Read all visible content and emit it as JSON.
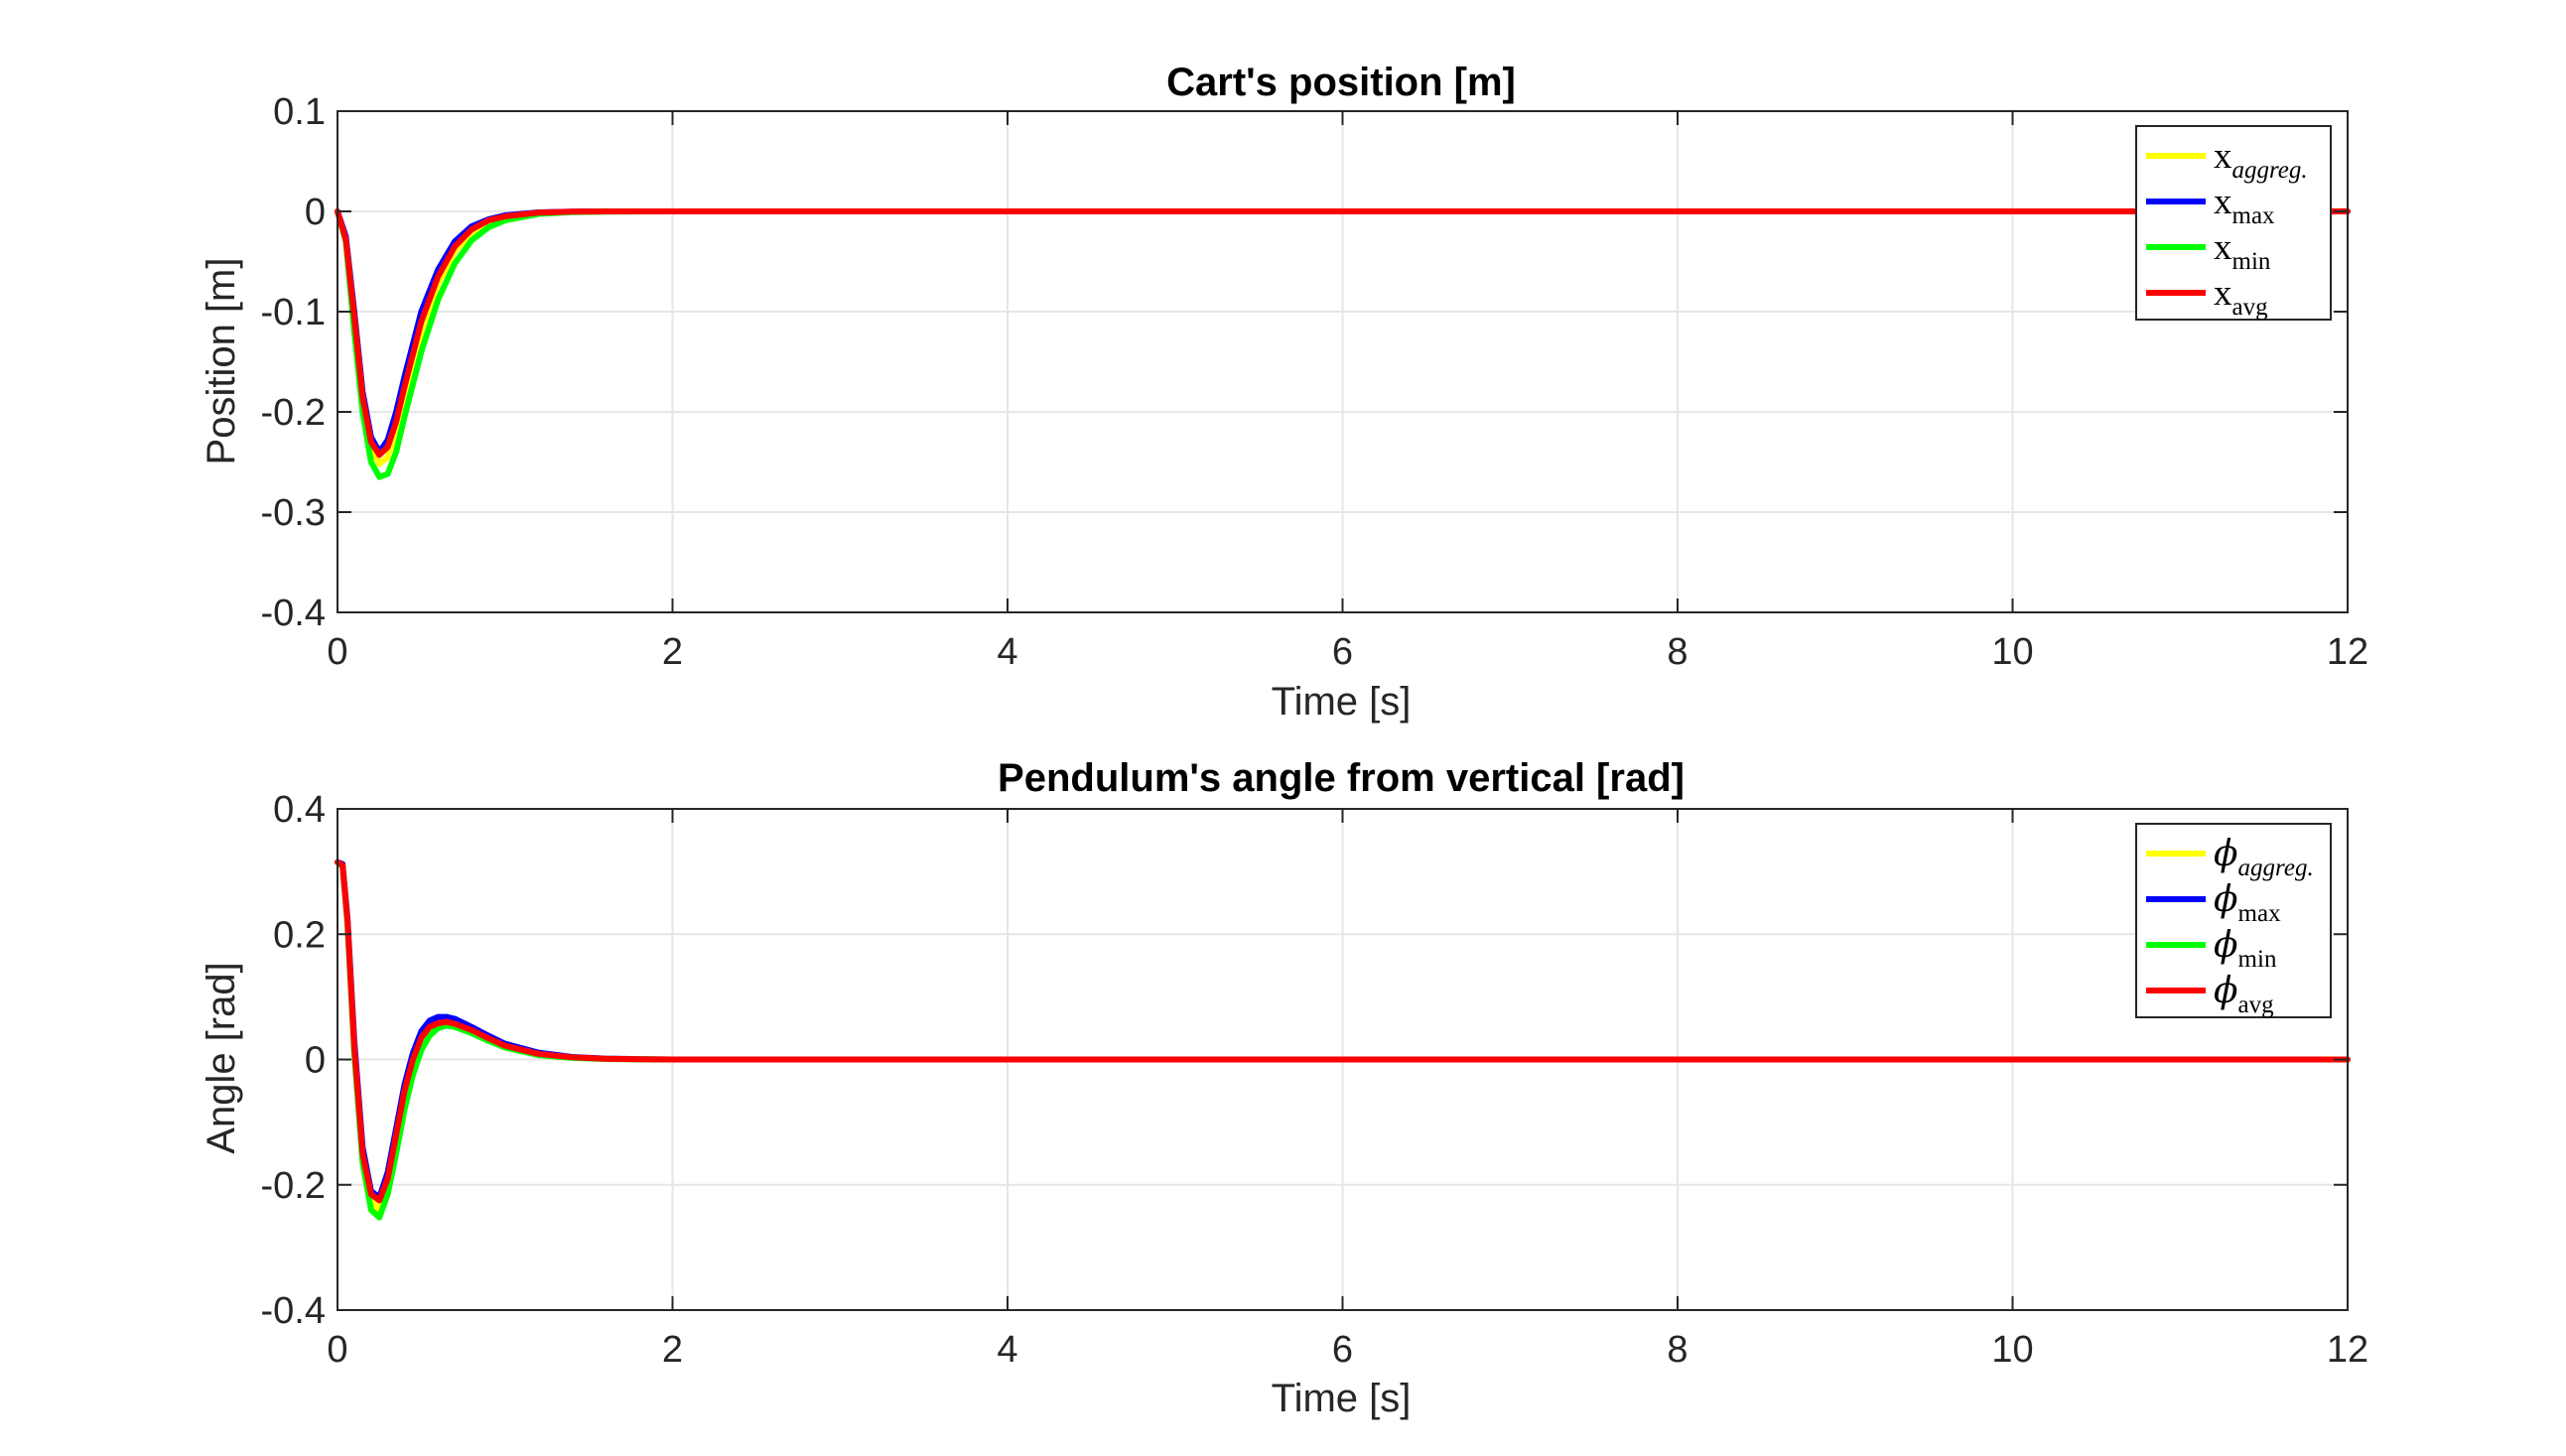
{
  "chart_data": [
    {
      "type": "line",
      "title": "Cart's position [m]",
      "xlabel": "Time [s]",
      "ylabel": "Position [m]",
      "xlim": [
        0,
        12
      ],
      "ylim": [
        -0.4,
        0.1
      ],
      "xticks": [
        0,
        2,
        4,
        6,
        8,
        10,
        12
      ],
      "xtick_labels": [
        "0",
        "2",
        "4",
        "6",
        "8",
        "10",
        "12"
      ],
      "yticks": [
        0.1,
        0,
        -0.1,
        -0.2,
        -0.3,
        -0.4
      ],
      "ytick_labels": [
        "0.1",
        "0",
        "-0.1",
        "-0.2",
        "-0.3",
        "-0.4"
      ],
      "grid": true,
      "legend_position": "top-right",
      "legend_symbol": "x",
      "series": [
        {
          "name": "aggreg.",
          "color": "#ffff00",
          "x": [
            0,
            0.05,
            0.1,
            0.15,
            0.2,
            0.25,
            0.3,
            0.35,
            0.4,
            0.5,
            0.6,
            0.7,
            0.8,
            0.9,
            1.0,
            1.2,
            1.4,
            1.6,
            2.0,
            12.0
          ],
          "y": [
            0,
            -0.03,
            -0.11,
            -0.19,
            -0.235,
            -0.252,
            -0.245,
            -0.22,
            -0.185,
            -0.12,
            -0.072,
            -0.04,
            -0.021,
            -0.011,
            -0.006,
            -0.0015,
            -0.0004,
            0,
            0,
            0
          ]
        },
        {
          "name": "max",
          "color": "#0000ff",
          "x": [
            0,
            0.05,
            0.1,
            0.15,
            0.2,
            0.25,
            0.3,
            0.35,
            0.4,
            0.5,
            0.6,
            0.7,
            0.8,
            0.9,
            1.0,
            1.2,
            1.4,
            1.6,
            2.0,
            12.0
          ],
          "y": [
            0,
            -0.025,
            -0.1,
            -0.18,
            -0.225,
            -0.24,
            -0.228,
            -0.2,
            -0.165,
            -0.1,
            -0.058,
            -0.03,
            -0.015,
            -0.008,
            -0.004,
            -0.001,
            -0.0003,
            0,
            0,
            0
          ]
        },
        {
          "name": "min",
          "color": "#00ff00",
          "x": [
            0,
            0.05,
            0.1,
            0.15,
            0.2,
            0.25,
            0.3,
            0.35,
            0.4,
            0.5,
            0.6,
            0.7,
            0.8,
            0.9,
            1.0,
            1.2,
            1.4,
            1.6,
            2.0,
            12.0
          ],
          "y": [
            0,
            -0.03,
            -0.12,
            -0.2,
            -0.25,
            -0.265,
            -0.262,
            -0.24,
            -0.205,
            -0.14,
            -0.088,
            -0.052,
            -0.029,
            -0.016,
            -0.009,
            -0.0025,
            -0.0007,
            -0.0002,
            0,
            0
          ]
        },
        {
          "name": "avg",
          "color": "#ff0000",
          "x": [
            0,
            0.05,
            0.1,
            0.15,
            0.2,
            0.25,
            0.3,
            0.35,
            0.4,
            0.5,
            0.6,
            0.7,
            0.8,
            0.9,
            1.0,
            1.2,
            1.4,
            1.6,
            2.0,
            12.0
          ],
          "y": [
            0,
            -0.028,
            -0.105,
            -0.185,
            -0.23,
            -0.243,
            -0.235,
            -0.21,
            -0.175,
            -0.11,
            -0.065,
            -0.035,
            -0.018,
            -0.009,
            -0.005,
            -0.0012,
            -0.0003,
            0,
            0,
            0
          ]
        }
      ]
    },
    {
      "type": "line",
      "title": "Pendulum's angle from vertical [rad]",
      "xlabel": "Time [s]",
      "ylabel": "Angle [rad]",
      "xlim": [
        0,
        12
      ],
      "ylim": [
        -0.4,
        0.4
      ],
      "xticks": [
        0,
        2,
        4,
        6,
        8,
        10,
        12
      ],
      "xtick_labels": [
        "0",
        "2",
        "4",
        "6",
        "8",
        "10",
        "12"
      ],
      "yticks": [
        0.4,
        0.2,
        0,
        -0.2,
        -0.4
      ],
      "ytick_labels": [
        "0.4",
        "0.2",
        "0",
        "-0.2",
        "-0.4"
      ],
      "grid": true,
      "legend_position": "top-right",
      "legend_symbol": "phi",
      "series": [
        {
          "name": "aggreg.",
          "color": "#ffff00",
          "x": [
            0,
            0.03,
            0.06,
            0.1,
            0.15,
            0.2,
            0.25,
            0.3,
            0.35,
            0.4,
            0.45,
            0.5,
            0.55,
            0.6,
            0.65,
            0.7,
            0.8,
            0.9,
            1.0,
            1.2,
            1.4,
            1.6,
            1.8,
            2.0,
            12.0
          ],
          "y": [
            0.315,
            0.31,
            0.22,
            0.02,
            -0.15,
            -0.225,
            -0.24,
            -0.2,
            -0.13,
            -0.06,
            -0.01,
            0.025,
            0.045,
            0.055,
            0.058,
            0.055,
            0.045,
            0.032,
            0.02,
            0.008,
            0.003,
            0.001,
            0.0003,
            0,
            0
          ]
        },
        {
          "name": "max",
          "color": "#0000ff",
          "x": [
            0,
            0.03,
            0.06,
            0.1,
            0.15,
            0.2,
            0.25,
            0.3,
            0.35,
            0.4,
            0.45,
            0.5,
            0.55,
            0.6,
            0.65,
            0.7,
            0.8,
            0.9,
            1.0,
            1.2,
            1.4,
            1.6,
            1.8,
            2.0,
            12.0
          ],
          "y": [
            0.315,
            0.312,
            0.225,
            0.03,
            -0.14,
            -0.21,
            -0.22,
            -0.18,
            -0.11,
            -0.04,
            0.01,
            0.045,
            0.062,
            0.068,
            0.068,
            0.065,
            0.052,
            0.038,
            0.025,
            0.011,
            0.004,
            0.0015,
            0.0005,
            0,
            0
          ]
        },
        {
          "name": "min",
          "color": "#00ff00",
          "x": [
            0,
            0.03,
            0.06,
            0.1,
            0.15,
            0.2,
            0.25,
            0.3,
            0.35,
            0.4,
            0.45,
            0.5,
            0.55,
            0.6,
            0.65,
            0.7,
            0.8,
            0.9,
            1.0,
            1.2,
            1.4,
            1.6,
            1.8,
            2.0,
            12.0
          ],
          "y": [
            0.315,
            0.308,
            0.215,
            0.01,
            -0.165,
            -0.24,
            -0.252,
            -0.215,
            -0.15,
            -0.08,
            -0.025,
            0.015,
            0.038,
            0.05,
            0.054,
            0.052,
            0.042,
            0.03,
            0.019,
            0.007,
            0.0025,
            0.0008,
            0.0002,
            0,
            0
          ]
        },
        {
          "name": "avg",
          "color": "#ff0000",
          "x": [
            0,
            0.03,
            0.06,
            0.1,
            0.15,
            0.2,
            0.25,
            0.3,
            0.35,
            0.4,
            0.45,
            0.5,
            0.55,
            0.6,
            0.65,
            0.7,
            0.8,
            0.9,
            1.0,
            1.2,
            1.4,
            1.6,
            1.8,
            2.0,
            12.0
          ],
          "y": [
            0.315,
            0.31,
            0.22,
            0.02,
            -0.15,
            -0.215,
            -0.225,
            -0.19,
            -0.12,
            -0.05,
            0.0,
            0.035,
            0.052,
            0.058,
            0.06,
            0.057,
            0.047,
            0.034,
            0.022,
            0.009,
            0.0035,
            0.0012,
            0.0004,
            0,
            0
          ]
        }
      ]
    }
  ]
}
